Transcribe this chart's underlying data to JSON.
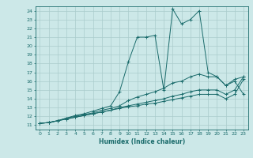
{
  "xlabel": "Humidex (Indice chaleur)",
  "xlim": [
    -0.5,
    23.5
  ],
  "ylim": [
    10.5,
    24.5
  ],
  "xticks": [
    0,
    1,
    2,
    3,
    4,
    5,
    6,
    7,
    8,
    9,
    10,
    11,
    12,
    13,
    14,
    15,
    16,
    17,
    18,
    19,
    20,
    21,
    22,
    23
  ],
  "yticks": [
    11,
    12,
    13,
    14,
    15,
    16,
    17,
    18,
    19,
    20,
    21,
    22,
    23,
    24
  ],
  "bg_color": "#cce8e8",
  "grid_color": "#aacccc",
  "line_color": "#1a6b6b",
  "series": [
    [
      11.2,
      11.3,
      11.5,
      11.8,
      12.1,
      12.3,
      12.6,
      12.9,
      13.2,
      14.8,
      18.2,
      21.0,
      21.0,
      21.2,
      15.0,
      24.2,
      22.5,
      23.0,
      24.0,
      17.0,
      16.5,
      15.5,
      16.0,
      14.5
    ],
    [
      11.2,
      11.3,
      11.5,
      11.8,
      12.0,
      12.2,
      12.4,
      12.7,
      12.9,
      13.2,
      13.8,
      14.2,
      14.5,
      14.8,
      15.2,
      15.8,
      16.0,
      16.5,
      16.8,
      16.5,
      16.5,
      15.5,
      16.2,
      16.5
    ],
    [
      11.2,
      11.3,
      11.5,
      11.7,
      11.9,
      12.1,
      12.3,
      12.5,
      12.7,
      13.0,
      13.2,
      13.4,
      13.6,
      13.8,
      14.0,
      14.3,
      14.5,
      14.8,
      15.0,
      15.0,
      15.0,
      14.5,
      15.0,
      16.5
    ],
    [
      11.2,
      11.3,
      11.5,
      11.7,
      11.9,
      12.1,
      12.3,
      12.5,
      12.7,
      12.9,
      13.1,
      13.2,
      13.4,
      13.5,
      13.7,
      13.9,
      14.1,
      14.3,
      14.5,
      14.5,
      14.5,
      14.0,
      14.5,
      16.2
    ]
  ]
}
